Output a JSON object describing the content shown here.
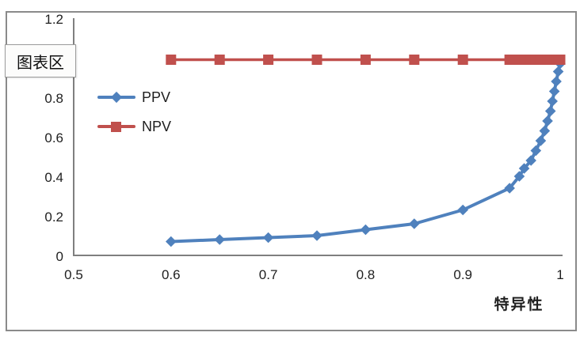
{
  "chart": {
    "tooltip_label": "图表区",
    "legend": [
      {
        "label": "PPV",
        "color": "#4f81bd",
        "marker": "diamond"
      },
      {
        "label": "NPV",
        "color": "#c0504d",
        "marker": "square"
      }
    ],
    "x_axis": {
      "title": "特异性",
      "tick_labels": [
        "0.5",
        "0.6",
        "0.7",
        "0.8",
        "0.9",
        "1"
      ],
      "tick_values": [
        0.5,
        0.6,
        0.7,
        0.8,
        0.9,
        1
      ]
    },
    "y_axis": {
      "tick_labels": [
        "1.2",
        "0.8",
        "0.6",
        "0.4",
        "0.2",
        "0"
      ],
      "tick_values": [
        1.2,
        0.8,
        0.6,
        0.4,
        0.2,
        0
      ]
    }
  },
  "chart_data": {
    "type": "line",
    "title": "",
    "xlabel": "特异性",
    "ylabel": "",
    "xlim": [
      0.5,
      1.0
    ],
    "ylim": [
      0,
      1.2
    ],
    "grid": false,
    "legend_position": "inside-top-left",
    "axis_color": "#7f7f7f",
    "series": [
      {
        "name": "PPV",
        "color": "#4f81bd",
        "marker": "diamond",
        "line_width": 4,
        "x": [
          0.6,
          0.65,
          0.7,
          0.75,
          0.8,
          0.85,
          0.9,
          0.948,
          0.958,
          0.963,
          0.97,
          0.975,
          0.98,
          0.984,
          0.987,
          0.99,
          0.992,
          0.994,
          0.996,
          0.998,
          1.0
        ],
        "y": [
          0.07,
          0.08,
          0.09,
          0.1,
          0.13,
          0.16,
          0.23,
          0.34,
          0.4,
          0.44,
          0.48,
          0.53,
          0.58,
          0.63,
          0.68,
          0.73,
          0.78,
          0.83,
          0.88,
          0.93,
          0.97
        ]
      },
      {
        "name": "NPV",
        "color": "#c0504d",
        "marker": "square",
        "line_width": 3.5,
        "x": [
          0.6,
          0.65,
          0.7,
          0.75,
          0.8,
          0.85,
          0.9,
          0.948,
          0.958,
          0.963,
          0.97,
          0.975,
          0.98,
          0.984,
          0.987,
          0.99,
          0.992,
          0.994,
          0.996,
          0.998,
          1.0
        ],
        "y": [
          0.99,
          0.99,
          0.99,
          0.99,
          0.99,
          0.99,
          0.99,
          0.99,
          0.99,
          0.99,
          0.99,
          0.99,
          0.99,
          0.99,
          0.99,
          0.99,
          0.99,
          0.99,
          0.99,
          0.99,
          0.99
        ]
      }
    ]
  }
}
